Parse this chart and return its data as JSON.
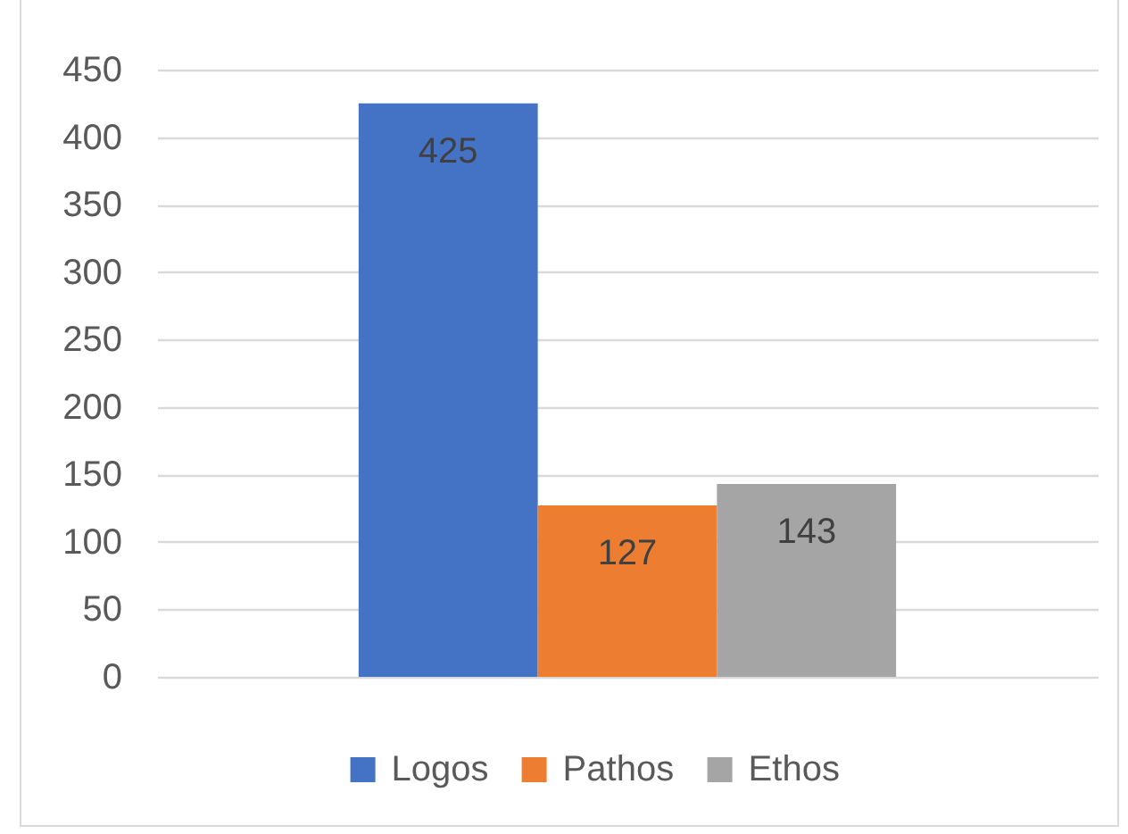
{
  "chart_data": {
    "type": "bar",
    "categories": [
      null
    ],
    "series": [
      {
        "name": "Logos",
        "color": "#4472c4",
        "values": [
          425
        ]
      },
      {
        "name": "Pathos",
        "color": "#ed7d31",
        "values": [
          127
        ]
      },
      {
        "name": "Ethos",
        "color": "#a5a5a5",
        "values": [
          143
        ]
      }
    ],
    "ylim": [
      0,
      450
    ],
    "yticks": [
      0,
      50,
      100,
      150,
      200,
      250,
      300,
      350,
      400,
      450
    ],
    "grid": "y",
    "legend": "bottom",
    "data_labels": true
  }
}
